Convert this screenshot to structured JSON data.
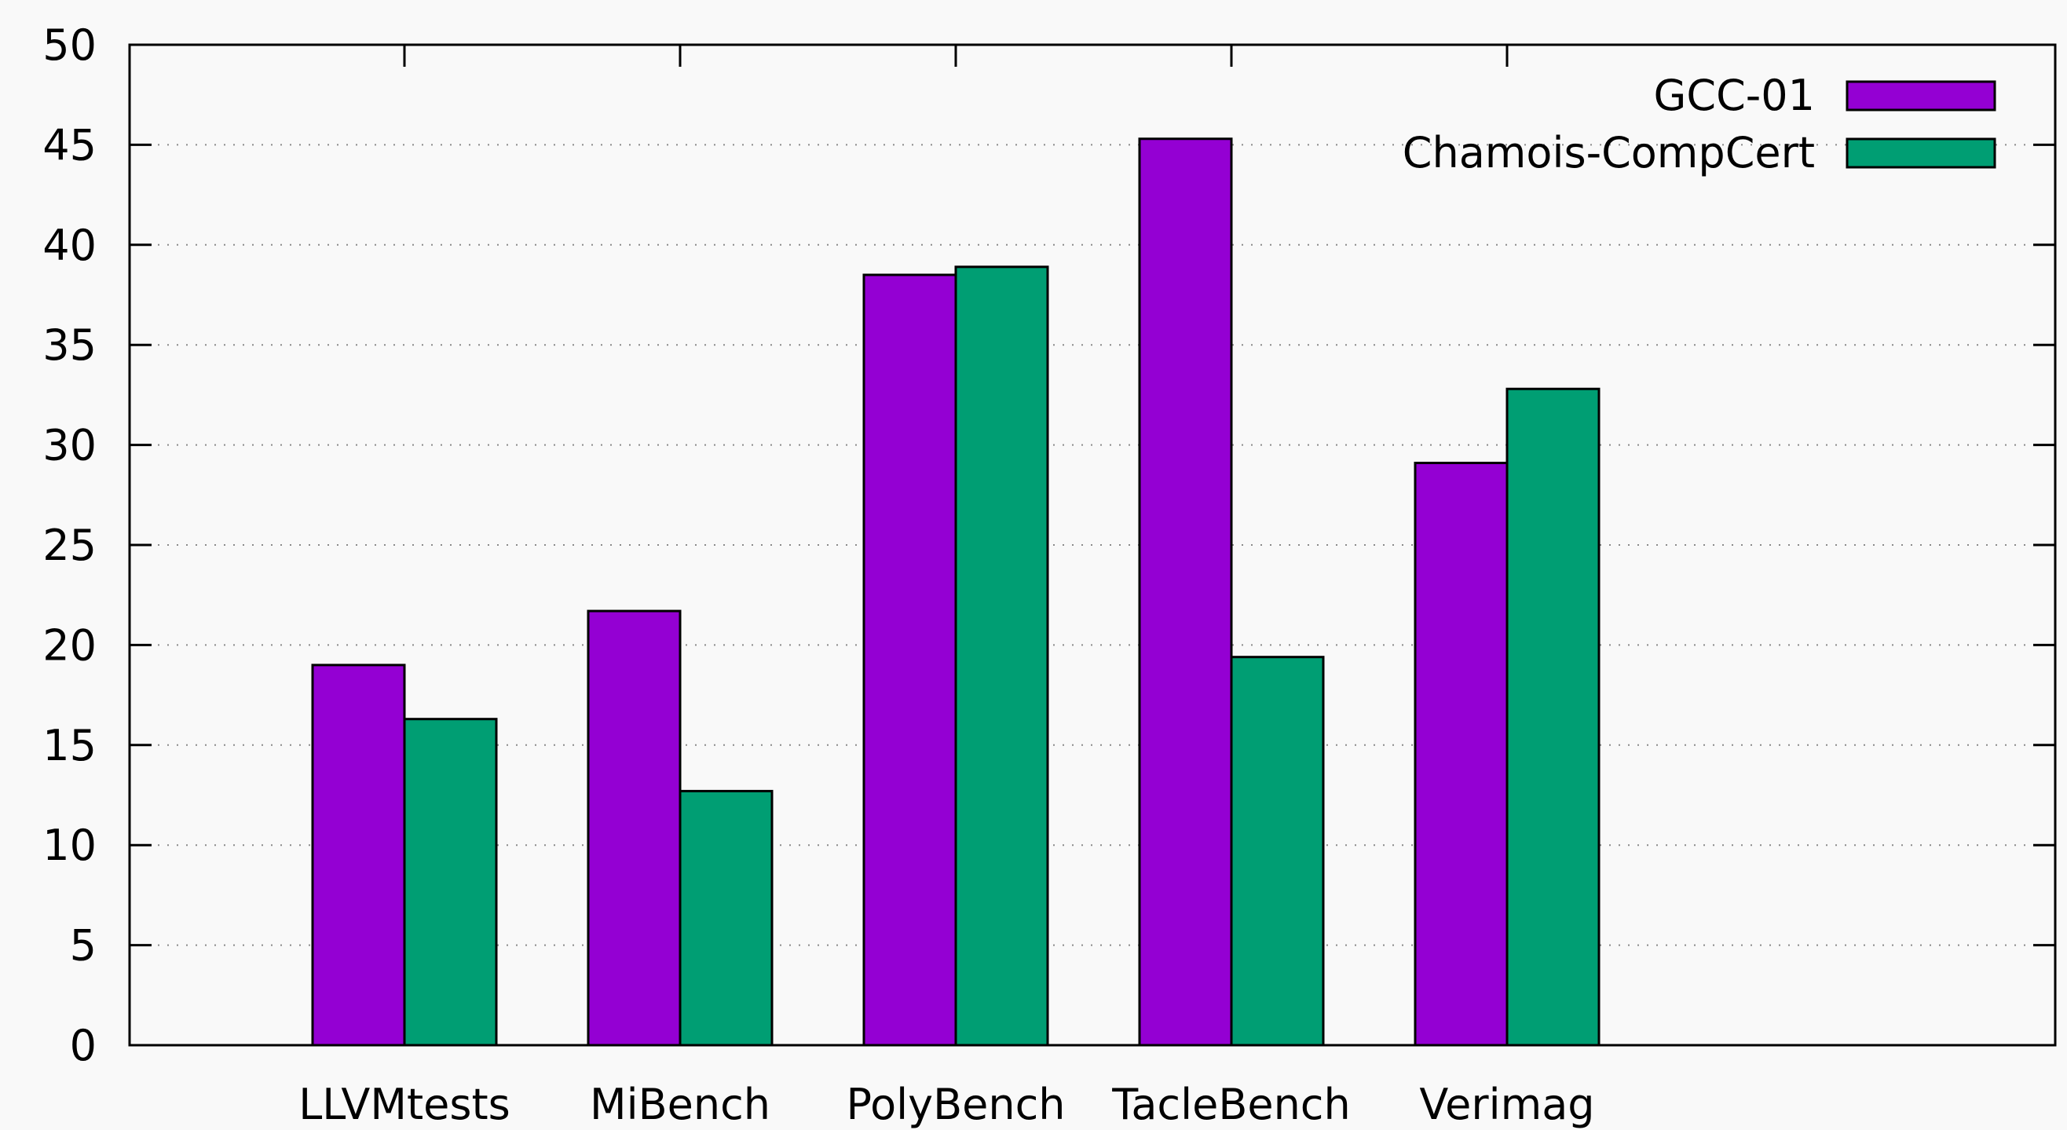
{
  "chart_data": {
    "type": "bar",
    "categories": [
      "LLVMtests",
      "MiBench",
      "PolyBench",
      "TacleBench",
      "Verimag"
    ],
    "series": [
      {
        "name": "GCC-01",
        "color": "#9400d3",
        "values": [
          19.0,
          21.7,
          38.5,
          45.3,
          29.1
        ]
      },
      {
        "name": "Chamois-CompCert",
        "color": "#009e73",
        "values": [
          16.3,
          12.7,
          38.9,
          19.4,
          32.8
        ]
      }
    ],
    "ylim": [
      0,
      50
    ],
    "yticks": [
      0,
      5,
      10,
      15,
      20,
      25,
      30,
      35,
      40,
      45,
      50
    ],
    "grid": "horizontal-dotted",
    "legend": "top-right",
    "background": "#f9f9f9"
  }
}
